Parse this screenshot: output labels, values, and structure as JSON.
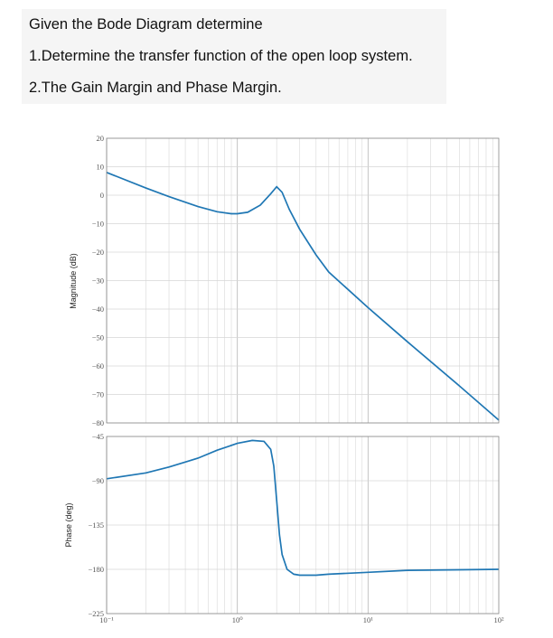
{
  "questions": {
    "line1": "Given the Bode Diagram determine",
    "line2": "1.Determine the transfer function of the open loop system.",
    "line3": "2.The Gain Margin and Phase Margin."
  },
  "chart_data": [
    {
      "type": "line",
      "title": "",
      "xlabel": "",
      "ylabel": "Magnitude (dB)",
      "x_scale": "log",
      "xlim": [
        0.1,
        100
      ],
      "ylim": [
        -80,
        20
      ],
      "yticks": [
        20,
        10,
        0,
        -10,
        -20,
        -30,
        -40,
        -50,
        -60,
        -70,
        -80
      ],
      "grid": true,
      "series": [
        {
          "color": "#1f77b4",
          "x": [
            0.1,
            0.2,
            0.3,
            0.5,
            0.7,
            0.9,
            1.0,
            1.2,
            1.5,
            1.8,
            2.0,
            2.2,
            2.5,
            3.0,
            4.0,
            5.0,
            10.0,
            20.0,
            50.0,
            100.0
          ],
          "y": [
            8,
            2.5,
            -0.5,
            -4,
            -5.8,
            -6.5,
            -6.5,
            -6,
            -3.5,
            0.5,
            3,
            1,
            -5,
            -12,
            -21,
            -27,
            -39.5,
            -51.5,
            -67,
            -79
          ]
        }
      ]
    },
    {
      "type": "line",
      "title": "",
      "xlabel": "",
      "ylabel": "Phase (deg)",
      "x_scale": "log",
      "xlim": [
        0.1,
        100
      ],
      "ylim": [
        -225,
        -45
      ],
      "yticks": [
        -45,
        -90,
        -135,
        -180,
        -225
      ],
      "xtick_labels": [
        "10⁻¹",
        "10⁰",
        "10¹",
        "10²"
      ],
      "grid": true,
      "series": [
        {
          "color": "#1f77b4",
          "x": [
            0.1,
            0.2,
            0.3,
            0.5,
            0.7,
            1.0,
            1.3,
            1.6,
            1.8,
            1.9,
            2.0,
            2.1,
            2.2,
            2.4,
            2.7,
            3.0,
            4.0,
            5.0,
            10.0,
            20.0,
            50.0,
            100.0
          ],
          "y": [
            -88,
            -82,
            -76,
            -67,
            -59,
            -52,
            -49,
            -50,
            -58,
            -75,
            -110,
            -145,
            -165,
            -180,
            -185,
            -186,
            -186,
            -185,
            -183,
            -181,
            -180.5,
            -180
          ]
        }
      ]
    }
  ]
}
